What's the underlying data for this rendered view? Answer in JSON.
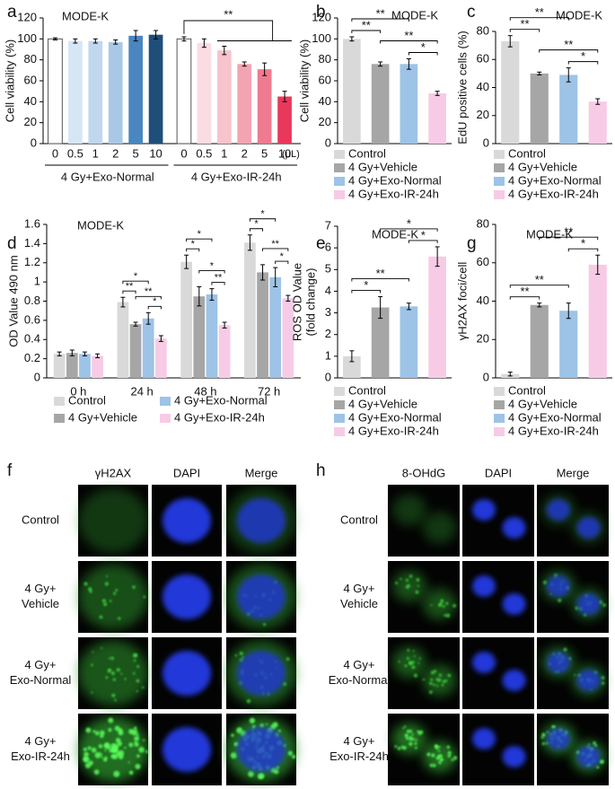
{
  "chart_data": [
    {
      "type": "bar_groups",
      "panel_label": "a",
      "title": "MODE-K",
      "ylabel": "Cell viability (%)",
      "unit_label": "(μL)",
      "ylim": [
        0,
        120
      ],
      "yticks": [
        0,
        20,
        40,
        60,
        80,
        100,
        120
      ],
      "groups": [
        {
          "name": "4 Gy+Exo-Normal",
          "categories": [
            "0",
            "0.5",
            "1",
            "2",
            "5",
            "10"
          ],
          "values": [
            100,
            98,
            98,
            97,
            103,
            104
          ],
          "errors": [
            1,
            2,
            2,
            2,
            5,
            4
          ],
          "colors": [
            "#ffffff",
            "#d6e6f4",
            "#c0d7ee",
            "#a9c8e6",
            "#4a86c0",
            "#1f4e79"
          ]
        },
        {
          "name": "4 Gy+Exo-IR-24h",
          "categories": [
            "0",
            "0.5",
            "1",
            "2",
            "5",
            "10"
          ],
          "values": [
            100,
            96,
            89,
            76,
            71,
            45
          ],
          "errors": [
            2,
            4,
            4,
            2,
            6,
            5
          ],
          "colors": [
            "#ffffff",
            "#fbdce2",
            "#f7c3cc",
            "#f3a4b2",
            "#ee7b8f",
            "#e8385c"
          ],
          "annotations": [
            {
              "text": "**",
              "between": [
                "0",
                "10"
              ]
            }
          ]
        }
      ]
    },
    {
      "type": "bar",
      "panel_label": "b",
      "title": "MODE-K",
      "ylabel": "Cell viability (%)",
      "ylim": [
        0,
        120
      ],
      "yticks": [
        0,
        20,
        40,
        60,
        80,
        100,
        120
      ],
      "categories": [
        "Control",
        "4 Gy+Vehicle",
        "4 Gy+Exo-Normal",
        "4 Gy+Exo-IR-24h"
      ],
      "values": [
        100,
        76,
        76,
        48
      ],
      "errors": [
        2,
        2,
        5,
        2
      ],
      "colors": [
        "#d9d9d9",
        "#a6a6a6",
        "#9dc3e6",
        "#f7cbe6"
      ],
      "annotations": [
        {
          "text": "**",
          "between": [
            "Control",
            "4 Gy+Vehicle"
          ]
        },
        {
          "text": "**",
          "between": [
            "Control",
            "4 Gy+Exo-Normal"
          ]
        },
        {
          "text": "**",
          "between": [
            "4 Gy+Vehicle",
            "4 Gy+Exo-IR-24h"
          ]
        },
        {
          "text": "*",
          "between": [
            "4 Gy+Exo-Normal",
            "4 Gy+Exo-IR-24h"
          ]
        }
      ]
    },
    {
      "type": "bar",
      "panel_label": "c",
      "title": "MODE-K",
      "ylabel": "EdU positive cells (%)",
      "ylim": [
        0,
        80
      ],
      "yticks": [
        0,
        20,
        40,
        60,
        80
      ],
      "categories": [
        "Control",
        "4 Gy+Vehicle",
        "4 Gy+Exo-Normal",
        "4 Gy+Exo-IR-24h"
      ],
      "values": [
        73,
        50,
        49,
        30
      ],
      "errors": [
        4,
        1,
        5,
        2
      ],
      "colors": [
        "#d9d9d9",
        "#a6a6a6",
        "#9dc3e6",
        "#f7cbe6"
      ],
      "annotations": [
        {
          "text": "**",
          "between": [
            "Control",
            "4 Gy+Vehicle"
          ]
        },
        {
          "text": "**",
          "between": [
            "Control",
            "4 Gy+Exo-Normal"
          ]
        },
        {
          "text": "**",
          "between": [
            "4 Gy+Vehicle",
            "4 Gy+Exo-IR-24h"
          ]
        },
        {
          "text": "*",
          "between": [
            "4 Gy+Exo-Normal",
            "4 Gy+Exo-IR-24h"
          ]
        }
      ]
    },
    {
      "type": "grouped_bar",
      "panel_label": "d",
      "title": "MODE-K",
      "ylabel": "OD Value 490 nm",
      "ylim": [
        0,
        1.6
      ],
      "yticks": [
        0,
        0.2,
        0.4,
        0.6,
        0.8,
        1,
        1.2,
        1.4,
        1.6
      ],
      "categories": [
        "0 h",
        "24 h",
        "48 h",
        "72 h"
      ],
      "series": [
        {
          "name": "Control",
          "color": "#d9d9d9",
          "values": [
            0.25,
            0.79,
            1.21,
            1.41
          ],
          "errors": [
            0.02,
            0.05,
            0.07,
            0.08
          ]
        },
        {
          "name": "4 Gy+Vehicle",
          "color": "#a6a6a6",
          "values": [
            0.26,
            0.56,
            0.85,
            1.1
          ],
          "errors": [
            0.03,
            0.02,
            0.1,
            0.08
          ]
        },
        {
          "name": "4 Gy+Exo-Normal",
          "color": "#9dc3e6",
          "values": [
            0.25,
            0.62,
            0.87,
            1.05
          ],
          "errors": [
            0.02,
            0.06,
            0.06,
            0.1
          ]
        },
        {
          "name": "4 Gy+Exo-IR-24h",
          "color": "#f7cbe6",
          "values": [
            0.23,
            0.41,
            0.55,
            0.83
          ],
          "errors": [
            0.02,
            0.03,
            0.03,
            0.03
          ]
        }
      ],
      "annotations": [
        {
          "category": "24 h",
          "text": "**",
          "between": [
            "Control",
            "4 Gy+Vehicle"
          ]
        },
        {
          "category": "24 h",
          "text": "*",
          "between": [
            "Control",
            "4 Gy+Exo-Normal"
          ]
        },
        {
          "category": "24 h",
          "text": "**",
          "between": [
            "4 Gy+Vehicle",
            "4 Gy+Exo-IR-24h"
          ]
        },
        {
          "category": "24 h",
          "text": "*",
          "between": [
            "4 Gy+Exo-Normal",
            "4 Gy+Exo-IR-24h"
          ]
        },
        {
          "category": "48 h",
          "text": "*",
          "between": [
            "Control",
            "4 Gy+Vehicle"
          ]
        },
        {
          "category": "48 h",
          "text": "*",
          "between": [
            "Control",
            "4 Gy+Exo-Normal"
          ]
        },
        {
          "category": "48 h",
          "text": "*",
          "between": [
            "4 Gy+Vehicle",
            "4 Gy+Exo-IR-24h"
          ]
        },
        {
          "category": "48 h",
          "text": "**",
          "between": [
            "4 Gy+Exo-Normal",
            "4 Gy+Exo-IR-24h"
          ]
        },
        {
          "category": "72 h",
          "text": "*",
          "between": [
            "Control",
            "4 Gy+Vehicle"
          ]
        },
        {
          "category": "72 h",
          "text": "*",
          "between": [
            "Control",
            "4 Gy+Exo-Normal"
          ]
        },
        {
          "category": "72 h",
          "text": "**",
          "between": [
            "4 Gy+Vehicle",
            "4 Gy+Exo-IR-24h"
          ]
        },
        {
          "category": "72 h",
          "text": "*",
          "between": [
            "4 Gy+Exo-Normal",
            "4 Gy+Exo-IR-24h"
          ]
        }
      ]
    },
    {
      "type": "bar",
      "panel_label": "e",
      "title": "MODE-K",
      "ylabel": [
        "ROS OD Value",
        "(fold change)"
      ],
      "ylim": [
        0,
        7
      ],
      "yticks": [
        0,
        1,
        2,
        3,
        4,
        5,
        6,
        7
      ],
      "categories": [
        "Control",
        "4 Gy+Vehicle",
        "4 Gy+Exo-Normal",
        "4 Gy+Exo-IR-24h"
      ],
      "values": [
        1,
        3.25,
        3.3,
        5.6
      ],
      "errors": [
        0.25,
        0.5,
        0.15,
        0.45
      ],
      "colors": [
        "#d9d9d9",
        "#a6a6a6",
        "#9dc3e6",
        "#f7cbe6"
      ],
      "annotations": [
        {
          "text": "*",
          "between": [
            "Control",
            "4 Gy+Vehicle"
          ]
        },
        {
          "text": "**",
          "between": [
            "Control",
            "4 Gy+Exo-Normal"
          ]
        },
        {
          "text": "*",
          "between": [
            "4 Gy+Vehicle",
            "4 Gy+Exo-IR-24h"
          ]
        },
        {
          "text": "*",
          "between": [
            "4 Gy+Exo-Normal",
            "4 Gy+Exo-IR-24h"
          ]
        }
      ]
    },
    {
      "type": "bar",
      "panel_label": "g",
      "title": "MODE-K",
      "ylabel": "γH2AX foci/cell",
      "ylim": [
        0,
        80
      ],
      "yticks": [
        0,
        20,
        40,
        60,
        80
      ],
      "categories": [
        "Control",
        "4 Gy+Vehicle",
        "4 Gy+Exo-Normal",
        "4 Gy+Exo-IR-24h"
      ],
      "values": [
        2,
        38,
        35,
        59
      ],
      "errors": [
        1,
        1,
        4,
        5
      ],
      "colors": [
        "#d9d9d9",
        "#a6a6a6",
        "#9dc3e6",
        "#f7cbe6"
      ],
      "annotations": [
        {
          "text": "**",
          "between": [
            "Control",
            "4 Gy+Vehicle"
          ]
        },
        {
          "text": "**",
          "between": [
            "Control",
            "4 Gy+Exo-Normal"
          ]
        },
        {
          "text": "**",
          "between": [
            "4 Gy+Vehicle",
            "4 Gy+Exo-IR-24h"
          ]
        },
        {
          "text": "*",
          "between": [
            "4 Gy+Exo-Normal",
            "4 Gy+Exo-IR-24h"
          ]
        }
      ]
    }
  ],
  "image_panels": [
    {
      "panel_label": "f",
      "columns": [
        "γH2AX",
        "DAPI",
        "Merge"
      ],
      "rows": [
        [
          "Control"
        ],
        [
          "4 Gy+",
          "Vehicle"
        ],
        [
          "4 Gy+",
          "Exo-Normal"
        ],
        [
          "4 Gy+",
          "Exo-IR-24h"
        ]
      ]
    },
    {
      "panel_label": "h",
      "columns": [
        "8-OHdG",
        "DAPI",
        "Merge"
      ],
      "rows": [
        [
          "Control"
        ],
        [
          "4 Gy+",
          "Vehicle"
        ],
        [
          "4 Gy+",
          "Exo-Normal"
        ],
        [
          "4 Gy+",
          "Exo-IR-24h"
        ]
      ]
    }
  ]
}
